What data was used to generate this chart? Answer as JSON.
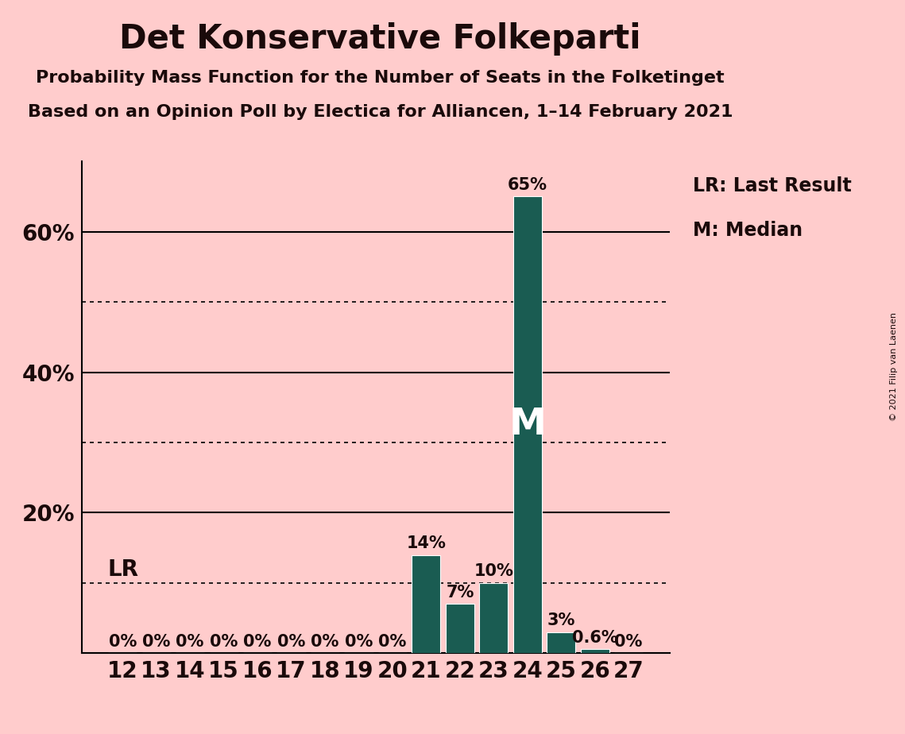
{
  "title": "Det Konservative Folkeparti",
  "subtitle1": "Probability Mass Function for the Number of Seats in the Folketinget",
  "subtitle2": "Based on an Opinion Poll by Electica for Alliancen, 1–14 February 2021",
  "copyright": "© 2021 Filip van Laenen",
  "categories": [
    12,
    13,
    14,
    15,
    16,
    17,
    18,
    19,
    20,
    21,
    22,
    23,
    24,
    25,
    26,
    27
  ],
  "values": [
    0,
    0,
    0,
    0,
    0,
    0,
    0,
    0,
    0,
    14,
    7,
    10,
    65,
    3,
    0.6,
    0
  ],
  "bar_color": "#1a5c52",
  "background_color": "#ffcccc",
  "text_color": "#1a0a0a",
  "ylim": [
    0,
    70
  ],
  "solid_lines": [
    20,
    40,
    60
  ],
  "dotted_lines": [
    10,
    30,
    50
  ],
  "lr_value": 10,
  "median_seat": 24,
  "legend_lr": "LR: Last Result",
  "legend_m": "M: Median",
  "title_fontsize": 30,
  "subtitle_fontsize": 16,
  "bar_label_fontsize": 15,
  "axis_tick_fontsize": 20
}
